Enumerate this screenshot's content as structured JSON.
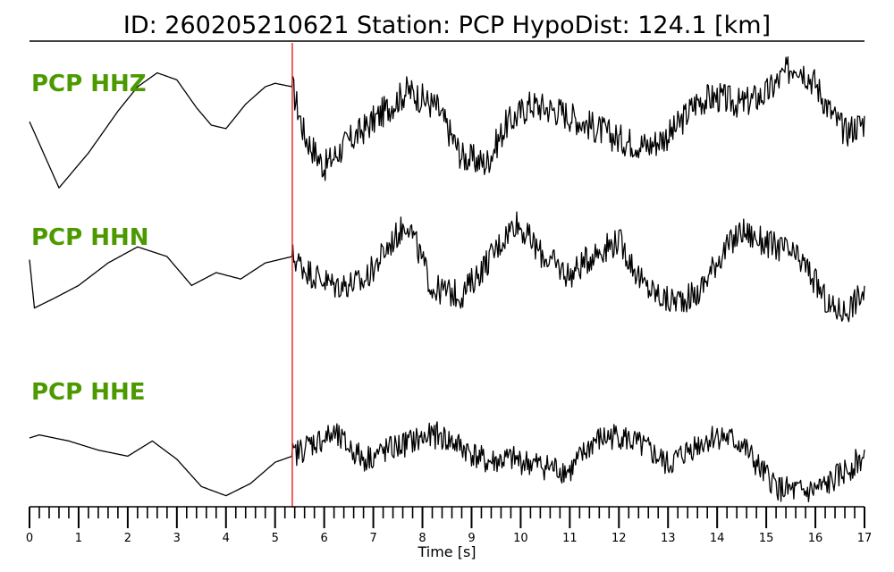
{
  "title": "ID: 260205210621   Station: PCP   HypoDist:   124.1 [km]",
  "colors": {
    "trace": "#000000",
    "label": "#4c9900",
    "pick_line": "#e8211c"
  },
  "chart_data": {
    "type": "line",
    "title": "ID: 260205210621   Station: PCP   HypoDist:   124.1 [km]",
    "xlabel": "Time [s]",
    "ylabel": "",
    "xlim": [
      0,
      17
    ],
    "x_ticks": [
      "0",
      "1",
      "2",
      "3",
      "4",
      "5",
      "6",
      "7",
      "8",
      "9",
      "10",
      "11",
      "12",
      "13",
      "14",
      "15",
      "16",
      "17"
    ],
    "minor_tick_step": 0.2,
    "pick_time": 5.35,
    "grid": false,
    "legend": "none",
    "series": [
      {
        "name": "PCP HHZ",
        "note": "normalized amplitude (1 = max)",
        "x": [
          0,
          0.6,
          1.2,
          1.8,
          2.2,
          2.6,
          3.0,
          3.4,
          3.7,
          4.0,
          4.4,
          4.8,
          5.0,
          5.35,
          5.6,
          6.0,
          6.4,
          6.9,
          7.3,
          7.7,
          8.3,
          8.8,
          9.3,
          9.7,
          10.2,
          10.8,
          11.4,
          12.0,
          12.6,
          13.1,
          13.6,
          14.0,
          14.5,
          15.0,
          15.6,
          16.0,
          16.3,
          16.6,
          17.0
        ],
        "y": [
          0.05,
          -0.9,
          -0.4,
          0.2,
          0.55,
          0.75,
          0.65,
          0.25,
          0.0,
          -0.05,
          0.3,
          0.55,
          0.6,
          0.55,
          -0.15,
          -0.6,
          -0.3,
          0.0,
          0.25,
          0.5,
          0.25,
          -0.45,
          -0.55,
          0.0,
          0.3,
          0.2,
          0.0,
          -0.2,
          -0.3,
          -0.1,
          0.35,
          0.4,
          0.3,
          0.45,
          0.9,
          0.6,
          0.2,
          -0.1,
          0.05
        ]
      },
      {
        "name": "PCP HHN",
        "note": "normalized amplitude (1 = max)",
        "x": [
          0,
          0.1,
          0.5,
          1.0,
          1.6,
          2.2,
          2.8,
          3.3,
          3.8,
          4.3,
          4.8,
          5.35,
          5.7,
          6.2,
          6.8,
          7.3,
          7.7,
          8.2,
          8.8,
          9.4,
          9.9,
          10.4,
          11.0,
          11.5,
          12.0,
          12.5,
          13.0,
          13.6,
          14.0,
          14.5,
          15.0,
          15.4,
          15.8,
          16.3,
          16.6,
          17.0
        ],
        "y": [
          0.2,
          -0.55,
          -0.4,
          -0.2,
          0.15,
          0.4,
          0.25,
          -0.2,
          0.0,
          -0.1,
          0.15,
          0.25,
          0.0,
          -0.2,
          -0.15,
          0.4,
          0.8,
          -0.25,
          -0.35,
          0.25,
          0.8,
          0.3,
          -0.05,
          0.3,
          0.5,
          -0.2,
          -0.45,
          -0.35,
          0.2,
          0.65,
          0.45,
          0.35,
          0.1,
          -0.55,
          -0.6,
          -0.3
        ]
      },
      {
        "name": "PCP HHE",
        "note": "normalized amplitude (1 = max)",
        "x": [
          0,
          0.2,
          0.8,
          1.4,
          2.0,
          2.5,
          3.0,
          3.5,
          4.0,
          4.5,
          5.0,
          5.35,
          5.7,
          6.2,
          6.8,
          7.3,
          7.8,
          8.3,
          8.8,
          9.3,
          9.8,
          10.4,
          11.0,
          11.5,
          12.0,
          12.6,
          13.0,
          13.5,
          14.0,
          14.5,
          14.9,
          15.3,
          15.8,
          16.2,
          16.6,
          17.0
        ],
        "y": [
          0.0,
          0.05,
          -0.05,
          -0.2,
          -0.3,
          -0.05,
          -0.35,
          -0.8,
          -0.95,
          -0.75,
          -0.4,
          -0.3,
          -0.1,
          0.05,
          -0.35,
          -0.2,
          -0.05,
          0.05,
          -0.15,
          -0.4,
          -0.35,
          -0.45,
          -0.55,
          -0.05,
          0.05,
          -0.2,
          -0.45,
          -0.15,
          0.05,
          -0.1,
          -0.55,
          -0.85,
          -0.9,
          -0.8,
          -0.55,
          -0.3
        ]
      }
    ]
  }
}
